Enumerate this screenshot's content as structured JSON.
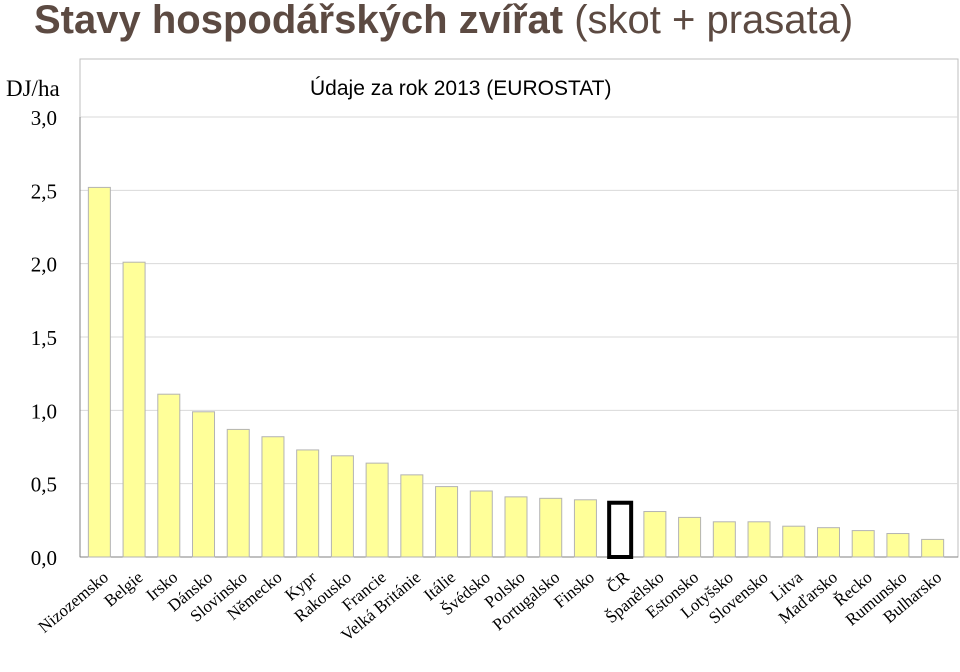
{
  "page": {
    "title_bold": "Stavy hospodářských zvířat",
    "title_rest": " (skot + prasata)",
    "unit": "DJ/ha",
    "subtitle": "Údaje za rok 2013 (EUROSTAT)"
  },
  "chart_data": {
    "type": "bar",
    "title": "Údaje za rok 2013 (EUROSTAT)",
    "ylabel": "DJ/ha",
    "ylim": [
      0,
      3.0
    ],
    "yticks": [
      "0,0",
      "0,5",
      "1,0",
      "1,5",
      "2,0",
      "2,5",
      "3,0"
    ],
    "grid": true,
    "categories": [
      "Nizozemsko",
      "Belgie",
      "Irsko",
      "Dánsko",
      "Slovinsko",
      "Německo",
      "Kypr",
      "Rakousko",
      "Francie",
      "Velká Británie",
      "Itálie",
      "Švédsko",
      "Polsko",
      "Portugalsko",
      "Finsko",
      "ČR",
      "Španělsko",
      "Estonsko",
      "Lotyšsko",
      "Slovensko",
      "Litva",
      "Maďarsko",
      "Řecko",
      "Rumunsko",
      "Bulharsko"
    ],
    "values": [
      2.52,
      2.01,
      1.11,
      0.99,
      0.87,
      0.82,
      0.73,
      0.69,
      0.64,
      0.56,
      0.48,
      0.45,
      0.41,
      0.4,
      0.39,
      0.37,
      0.31,
      0.27,
      0.24,
      0.24,
      0.21,
      0.2,
      0.18,
      0.16,
      0.12
    ],
    "highlight": "ČR",
    "colors": {
      "bar_fill": "#ffff99",
      "bar_stroke": "#b3b3b3",
      "highlight_fill": "#ffffff",
      "highlight_stroke": "#000000",
      "grid": "#d9d9d9"
    }
  }
}
